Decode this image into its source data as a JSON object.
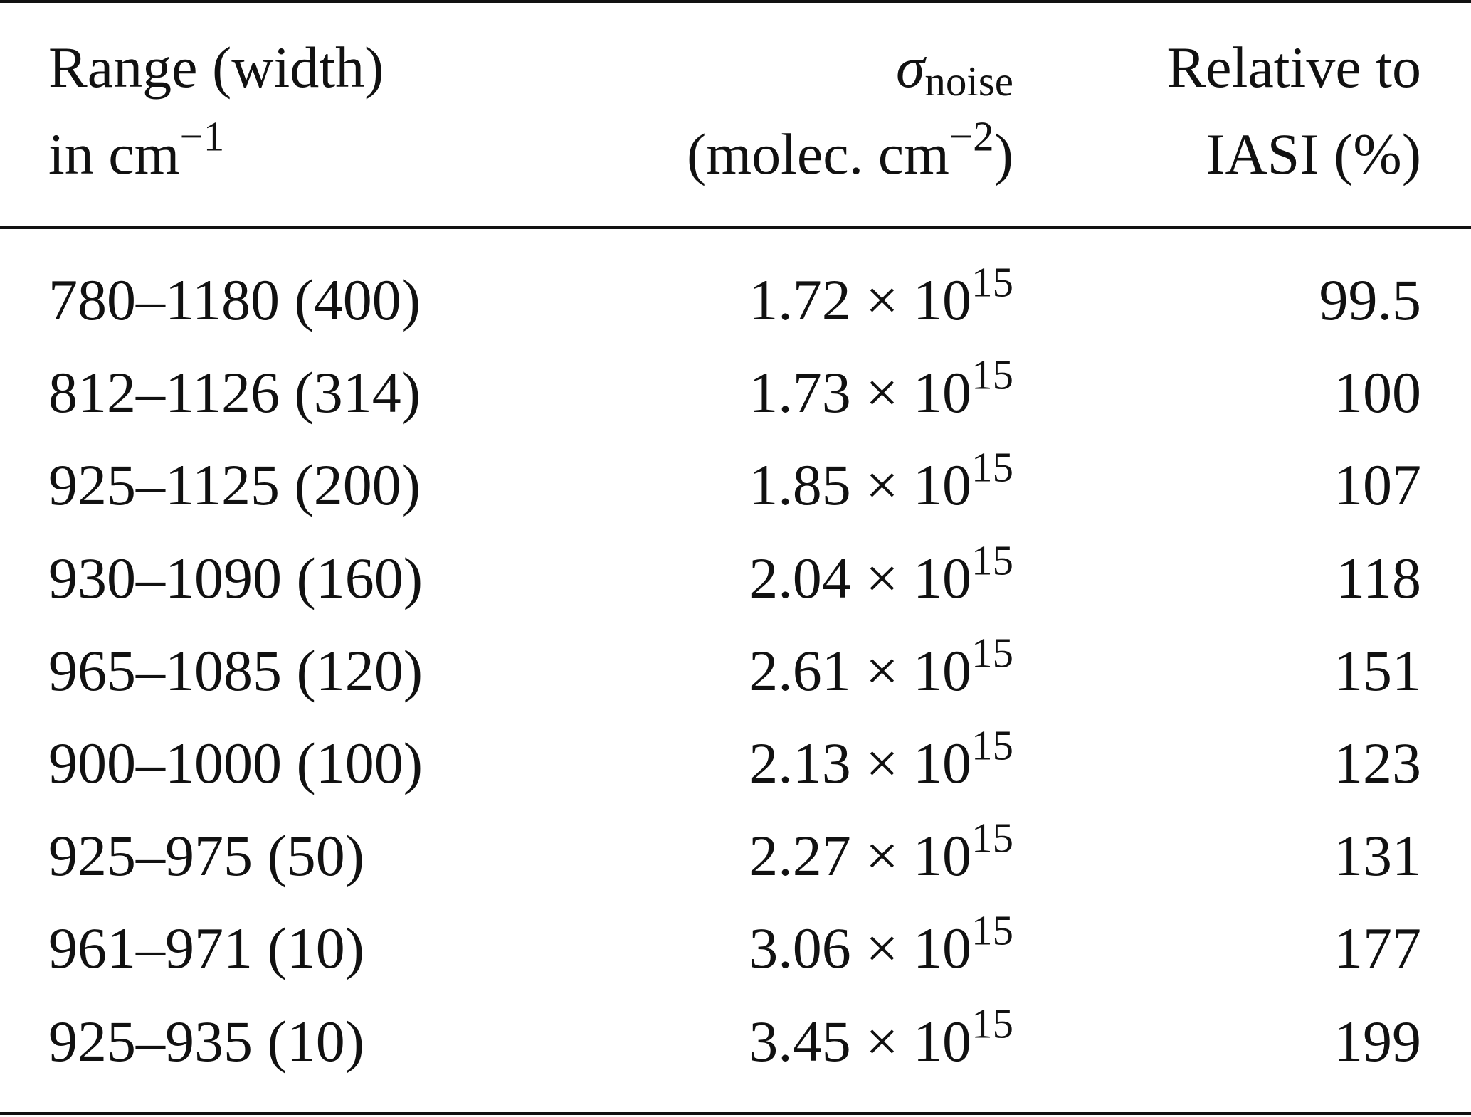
{
  "table": {
    "header": [
      {
        "line1": {
          "text": "Range (width)"
        },
        "line2": {
          "text": "in cm",
          "sup": "−1"
        }
      },
      {
        "line1": {
          "text": "σ",
          "sub": "noise"
        },
        "line2": {
          "text": "(molec. cm",
          "sup": "−2",
          "tail": ")"
        }
      },
      {
        "line1": {
          "text": "Relative to"
        },
        "line2": {
          "text": "IASI (%)"
        }
      }
    ],
    "rows": [
      [
        "780–1180 (400)",
        {
          "mantissa": "1.72 × 10",
          "exp": "15"
        },
        "99.5"
      ],
      [
        "812–1126 (314)",
        {
          "mantissa": "1.73 × 10",
          "exp": "15"
        },
        "100"
      ],
      [
        "925–1125 (200)",
        {
          "mantissa": "1.85 × 10",
          "exp": "15"
        },
        "107"
      ],
      [
        "930–1090 (160)",
        {
          "mantissa": "2.04 × 10",
          "exp": "15"
        },
        "118"
      ],
      [
        "965–1085 (120)",
        {
          "mantissa": "2.61 × 10",
          "exp": "15"
        },
        "151"
      ],
      [
        "900–1000 (100)",
        {
          "mantissa": "2.13 × 10",
          "exp": "15"
        },
        "123"
      ],
      [
        "925–975 (50)",
        {
          "mantissa": "2.27 × 10",
          "exp": "15"
        },
        "131"
      ],
      [
        "961–971 (10)",
        {
          "mantissa": "3.06 × 10",
          "exp": "15"
        },
        "177"
      ],
      [
        "925–935 (10)",
        {
          "mantissa": "3.45 × 10",
          "exp": "15"
        },
        "199"
      ]
    ]
  }
}
